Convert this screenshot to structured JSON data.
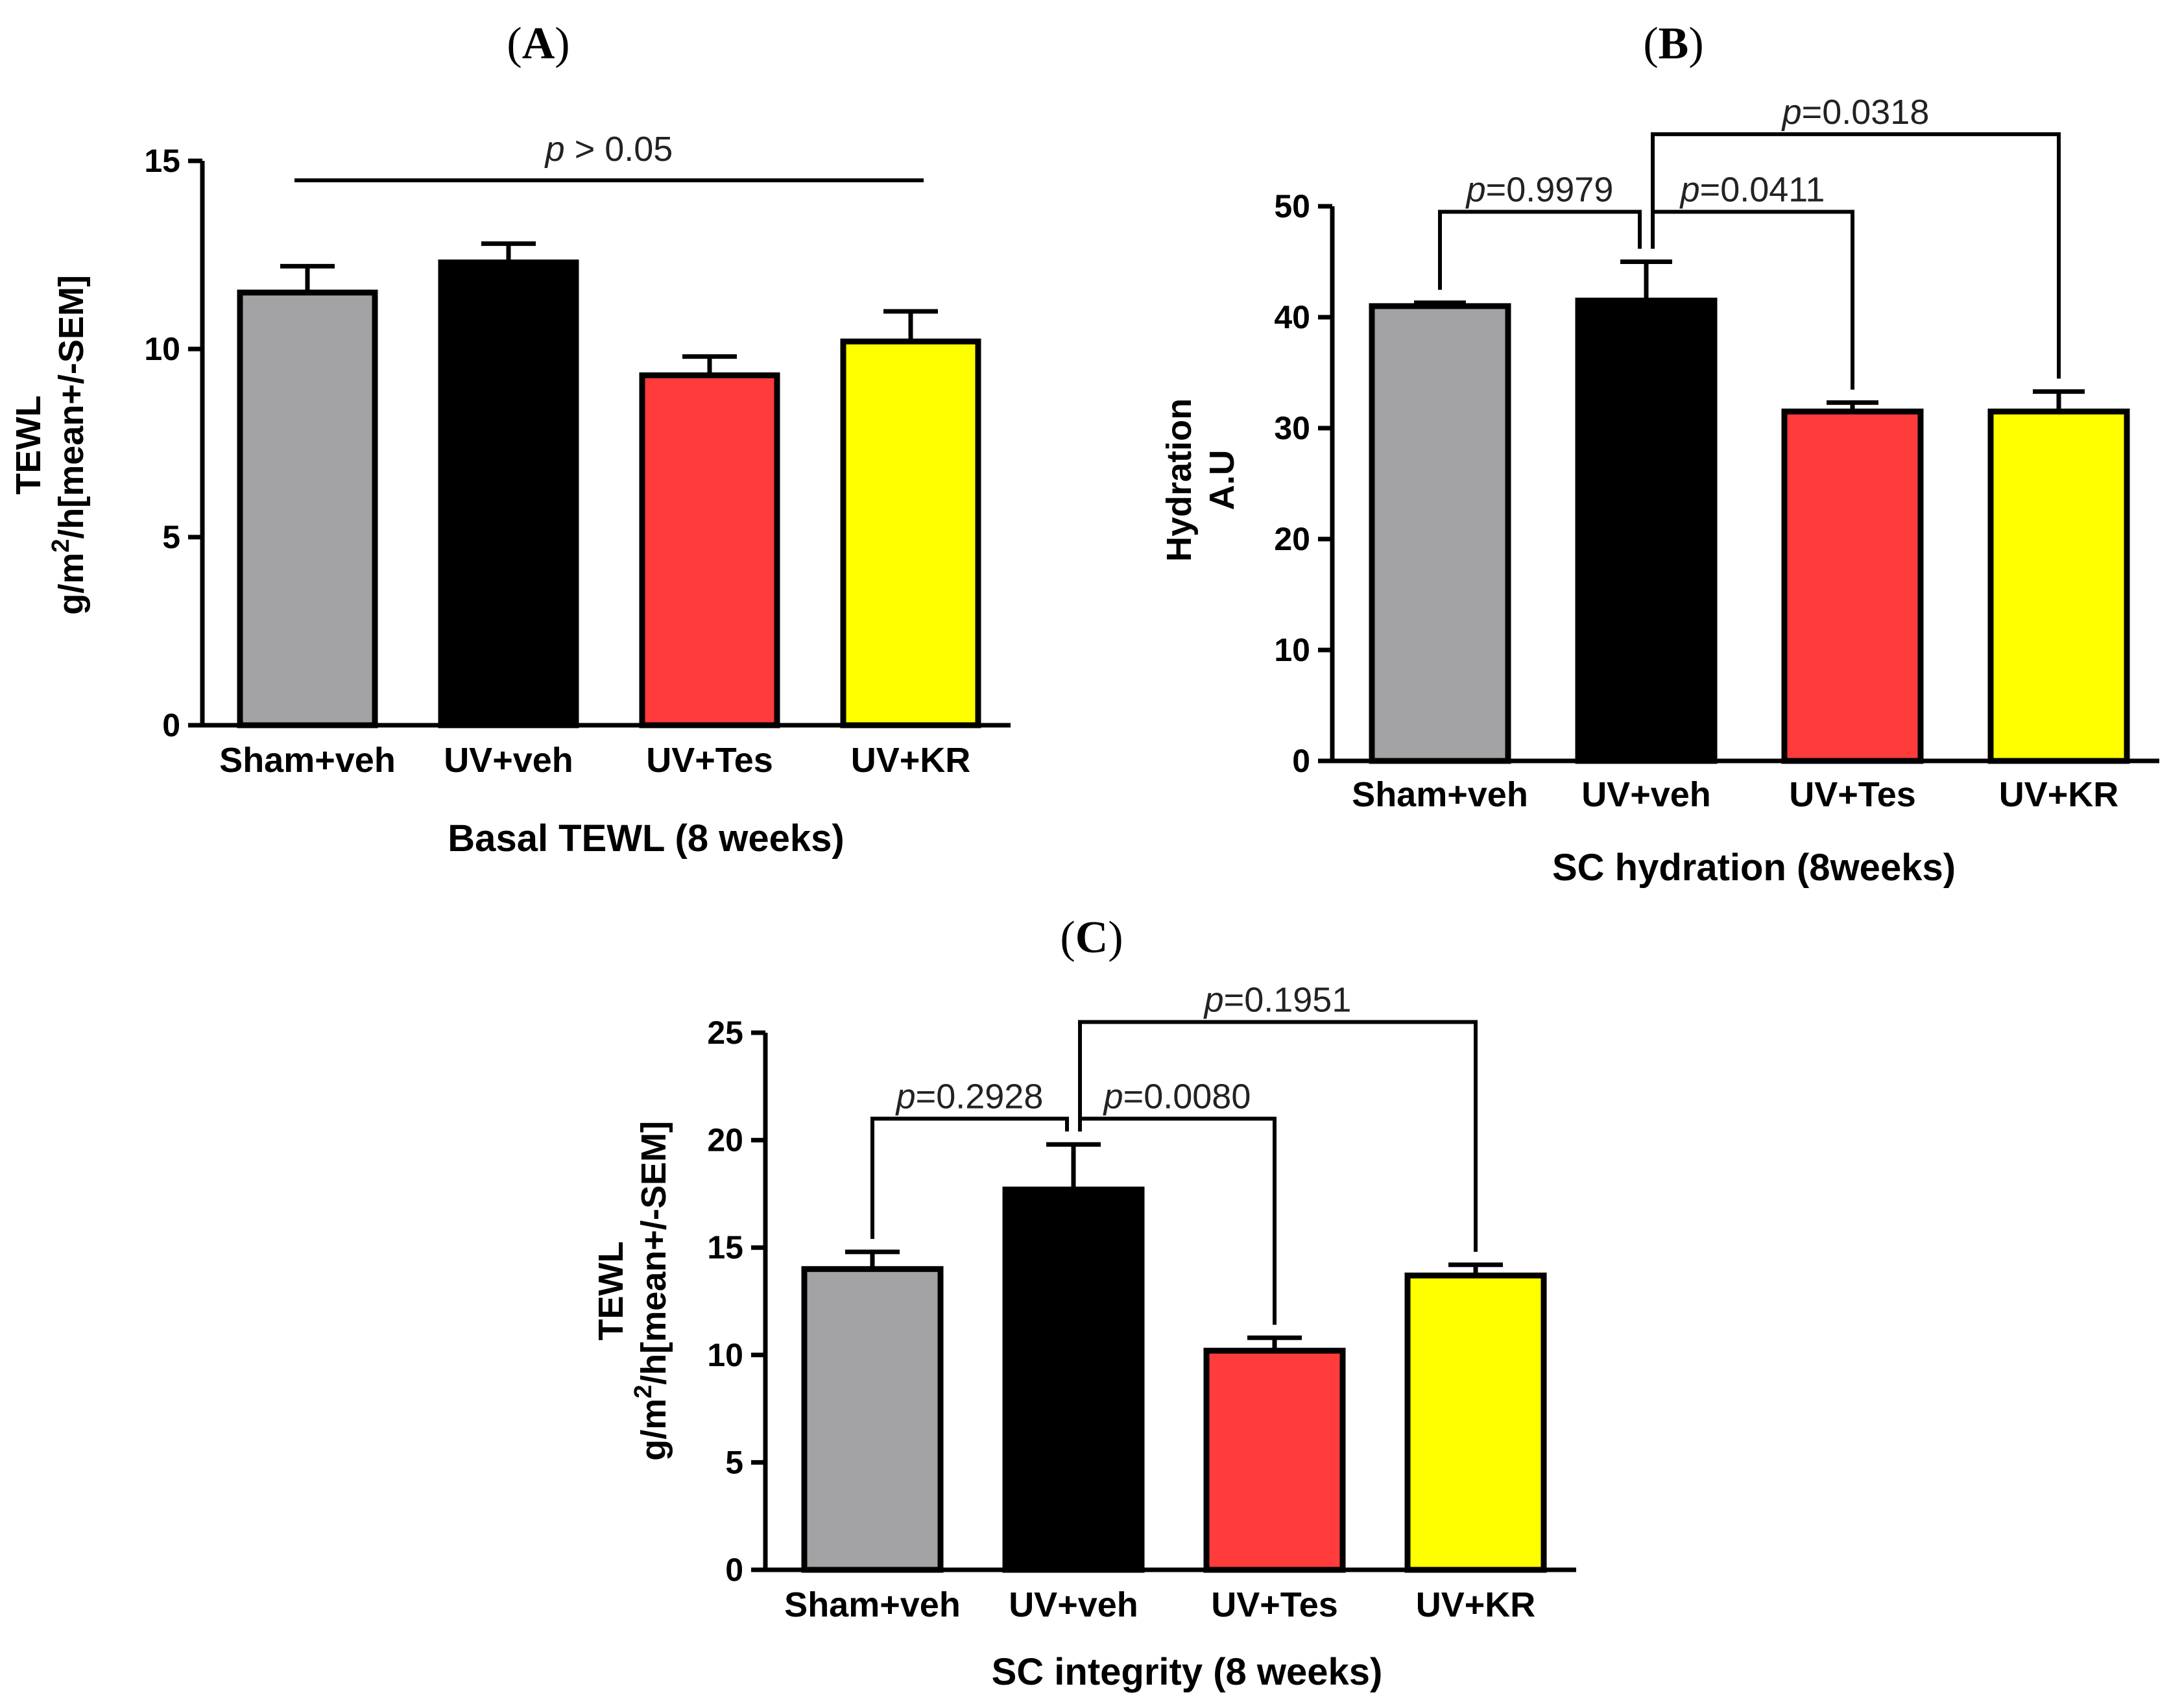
{
  "chart_data": [
    {
      "panel": "A",
      "type": "bar",
      "categories": [
        "Sham+veh",
        "UV+veh",
        "UV+Tes",
        "UV+KR"
      ],
      "values": [
        11.5,
        12.3,
        9.3,
        10.2
      ],
      "errors": [
        0.7,
        0.5,
        0.5,
        0.8
      ],
      "colors": [
        "#a3a3a6",
        "#000000",
        "#ff3b3b",
        "#ffff00"
      ],
      "ylim": [
        0,
        15
      ],
      "yticks": [
        "0",
        "5",
        "10",
        "15"
      ],
      "title": "",
      "xlabel": "Basal TEWL (8 weeks)",
      "ylabel_line1": "TEWL",
      "ylabel_line2_pre": "g/m",
      "ylabel_line2_sup": "2",
      "ylabel_line2_post": "/h[mean+/-SEM]",
      "comparisons": [
        {
          "type": "line",
          "from": 0,
          "to": 3,
          "p_symbol": "p",
          "p_text": " > 0.05"
        }
      ]
    },
    {
      "panel": "B",
      "type": "bar",
      "categories": [
        "Sham+veh",
        "UV+veh",
        "UV+Tes",
        "UV+KR"
      ],
      "values": [
        41.0,
        41.5,
        31.5,
        31.5
      ],
      "errors": [
        0.3,
        3.5,
        0.8,
        1.8
      ],
      "colors": [
        "#a3a3a6",
        "#000000",
        "#ff3b3b",
        "#ffff00"
      ],
      "ylim": [
        0,
        50
      ],
      "yticks": [
        "0",
        "10",
        "20",
        "30",
        "40",
        "50"
      ],
      "title": "",
      "xlabel": "SC hydration (8weeks)",
      "ylabel_line1": "Hydration",
      "ylabel_line2": "A.U",
      "comparisons": [
        {
          "type": "bracket",
          "from": 0,
          "to": 1,
          "level": 49.5,
          "p_symbol": "p",
          "p_text": "=0.9979"
        },
        {
          "type": "bracket",
          "from": 1,
          "to": 2,
          "level": 49.5,
          "p_symbol": "p",
          "p_text": "=0.0411"
        },
        {
          "type": "bracket",
          "from": 1,
          "to": 3,
          "level": 56.5,
          "p_symbol": "p",
          "p_text": "=0.0318"
        }
      ]
    },
    {
      "panel": "C",
      "type": "bar",
      "categories": [
        "Sham+veh",
        "UV+veh",
        "UV+Tes",
        "UV+KR"
      ],
      "values": [
        14.0,
        17.7,
        10.2,
        13.7
      ],
      "errors": [
        0.8,
        2.1,
        0.6,
        0.5
      ],
      "colors": [
        "#a3a3a6",
        "#000000",
        "#ff3b3b",
        "#ffff00"
      ],
      "ylim": [
        0,
        25
      ],
      "yticks": [
        "0",
        "5",
        "10",
        "15",
        "20",
        "25"
      ],
      "title": "",
      "xlabel": "SC integrity (8 weeks)",
      "ylabel_line1": "TEWL",
      "ylabel_line2_pre": "g/m",
      "ylabel_line2_sup": "2",
      "ylabel_line2_post": "/h[mean+/-SEM]",
      "comparisons": [
        {
          "type": "bracket",
          "from": 0,
          "to": 1,
          "level": 21.0,
          "p_symbol": "p",
          "p_text": "=0.2928"
        },
        {
          "type": "bracket",
          "from": 1,
          "to": 2,
          "level": 21.0,
          "p_symbol": "p",
          "p_text": "=0.0080"
        },
        {
          "type": "bracket",
          "from": 1,
          "to": 3,
          "level": 25.5,
          "p_symbol": "p",
          "p_text": "=0.1951"
        }
      ]
    }
  ],
  "panel_labels": [
    {
      "open": "(",
      "letter": "A",
      "close": ")"
    },
    {
      "open": "(",
      "letter": "B",
      "close": ")"
    },
    {
      "open": "(",
      "letter": "C",
      "close": ")"
    }
  ]
}
